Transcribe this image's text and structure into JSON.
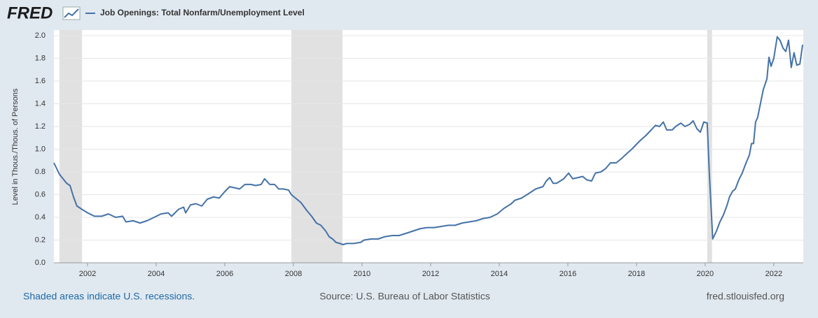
{
  "chart_data": {
    "type": "line",
    "logo": "FRED",
    "ylabel": "Level in Thous./Thous. of Persons",
    "recession_note": "Shaded areas indicate U.S. recessions.",
    "source": "Source: U.S. Bureau of Labor Statistics",
    "site": "fred.stlouisfed.org",
    "grid": true,
    "recessions": [
      [
        2001.18,
        2001.84
      ],
      [
        2007.94,
        2009.43
      ],
      [
        2020.06,
        2020.2
      ]
    ],
    "recession_color": "#e1e1e1",
    "xlim": [
      2001.02,
      2022.86
    ],
    "xticks": [
      2002,
      2004,
      2006,
      2008,
      2010,
      2012,
      2014,
      2016,
      2018,
      2020,
      2022
    ],
    "ylim": [
      0,
      2
    ],
    "yticks": [
      {
        "value": 0,
        "label": "0.0"
      },
      0.2,
      0.4,
      0.6,
      0.8,
      {
        "value": 1,
        "label": "1.0"
      },
      1.2,
      1.4,
      1.6,
      1.8,
      {
        "value": 2,
        "label": "2.0"
      }
    ],
    "x": [
      2001.02,
      2001.18,
      2001.39,
      2001.49,
      2001.59,
      2001.69,
      2001.84,
      2002.0,
      2002.2,
      2002.41,
      2002.61,
      2002.82,
      2003.02,
      2003.12,
      2003.33,
      2003.53,
      2003.73,
      2003.94,
      2004.14,
      2004.35,
      2004.45,
      2004.65,
      2004.8,
      2004.86,
      2005.0,
      2005.16,
      2005.33,
      2005.49,
      2005.67,
      2005.84,
      2005.98,
      2006.14,
      2006.29,
      2006.43,
      2006.59,
      2006.76,
      2006.9,
      2007.06,
      2007.16,
      2007.31,
      2007.45,
      2007.57,
      2007.71,
      2007.86,
      2007.94,
      2008.1,
      2008.22,
      2008.39,
      2008.53,
      2008.67,
      2008.8,
      2008.94,
      2009.04,
      2009.14,
      2009.24,
      2009.35,
      2009.45,
      2009.55,
      2009.76,
      2009.96,
      2010.06,
      2010.27,
      2010.47,
      2010.67,
      2010.88,
      2011.08,
      2011.29,
      2011.49,
      2011.69,
      2011.9,
      2012.1,
      2012.31,
      2012.51,
      2012.71,
      2012.92,
      2013.12,
      2013.33,
      2013.53,
      2013.73,
      2013.94,
      2014.14,
      2014.35,
      2014.45,
      2014.65,
      2014.86,
      2015.06,
      2015.27,
      2015.37,
      2015.47,
      2015.57,
      2015.67,
      2015.88,
      2016.02,
      2016.14,
      2016.29,
      2016.43,
      2016.55,
      2016.69,
      2016.8,
      2016.96,
      2017.1,
      2017.24,
      2017.41,
      2017.57,
      2017.71,
      2017.86,
      2018.02,
      2018.12,
      2018.27,
      2018.43,
      2018.55,
      2018.67,
      2018.78,
      2018.88,
      2019.04,
      2019.14,
      2019.29,
      2019.41,
      2019.55,
      2019.65,
      2019.76,
      2019.86,
      2019.96,
      2020.06,
      2020.12,
      2020.22,
      2020.33,
      2020.43,
      2020.53,
      2020.63,
      2020.71,
      2020.8,
      2020.88,
      2020.98,
      2021.08,
      2021.18,
      2021.29,
      2021.35,
      2021.41,
      2021.47,
      2021.53,
      2021.61,
      2021.69,
      2021.8,
      2021.86,
      2021.92,
      2022.0,
      2022.1,
      2022.18,
      2022.27,
      2022.35,
      2022.43,
      2022.51,
      2022.59,
      2022.67,
      2022.76,
      2022.84
    ],
    "series": [
      {
        "name": "Job Openings: Total Nonfarm/Unemployment Level",
        "color": "#4572a7",
        "values": [
          0.88,
          0.78,
          0.7,
          0.68,
          0.58,
          0.5,
          0.47,
          0.44,
          0.41,
          0.41,
          0.43,
          0.4,
          0.41,
          0.36,
          0.37,
          0.35,
          0.37,
          0.4,
          0.43,
          0.44,
          0.41,
          0.47,
          0.49,
          0.44,
          0.51,
          0.52,
          0.5,
          0.56,
          0.58,
          0.57,
          0.62,
          0.67,
          0.66,
          0.65,
          0.69,
          0.69,
          0.68,
          0.69,
          0.74,
          0.69,
          0.69,
          0.65,
          0.65,
          0.64,
          0.6,
          0.56,
          0.53,
          0.46,
          0.41,
          0.35,
          0.33,
          0.28,
          0.23,
          0.21,
          0.18,
          0.17,
          0.16,
          0.17,
          0.17,
          0.18,
          0.2,
          0.21,
          0.21,
          0.23,
          0.24,
          0.24,
          0.26,
          0.28,
          0.3,
          0.31,
          0.31,
          0.32,
          0.33,
          0.33,
          0.35,
          0.36,
          0.37,
          0.39,
          0.4,
          0.43,
          0.48,
          0.52,
          0.55,
          0.57,
          0.61,
          0.65,
          0.67,
          0.72,
          0.75,
          0.7,
          0.7,
          0.74,
          0.79,
          0.74,
          0.75,
          0.76,
          0.73,
          0.72,
          0.79,
          0.8,
          0.83,
          0.88,
          0.88,
          0.92,
          0.96,
          1.0,
          1.05,
          1.08,
          1.12,
          1.17,
          1.21,
          1.2,
          1.24,
          1.17,
          1.17,
          1.2,
          1.23,
          1.2,
          1.22,
          1.25,
          1.18,
          1.15,
          1.24,
          1.23,
          0.8,
          0.21,
          0.28,
          0.36,
          0.42,
          0.5,
          0.58,
          0.63,
          0.65,
          0.73,
          0.79,
          0.87,
          0.95,
          1.05,
          1.05,
          1.24,
          1.28,
          1.4,
          1.52,
          1.62,
          1.81,
          1.73,
          1.8,
          1.99,
          1.96,
          1.89,
          1.86,
          1.96,
          1.72,
          1.85,
          1.74,
          1.75,
          1.92
        ]
      }
    ]
  }
}
